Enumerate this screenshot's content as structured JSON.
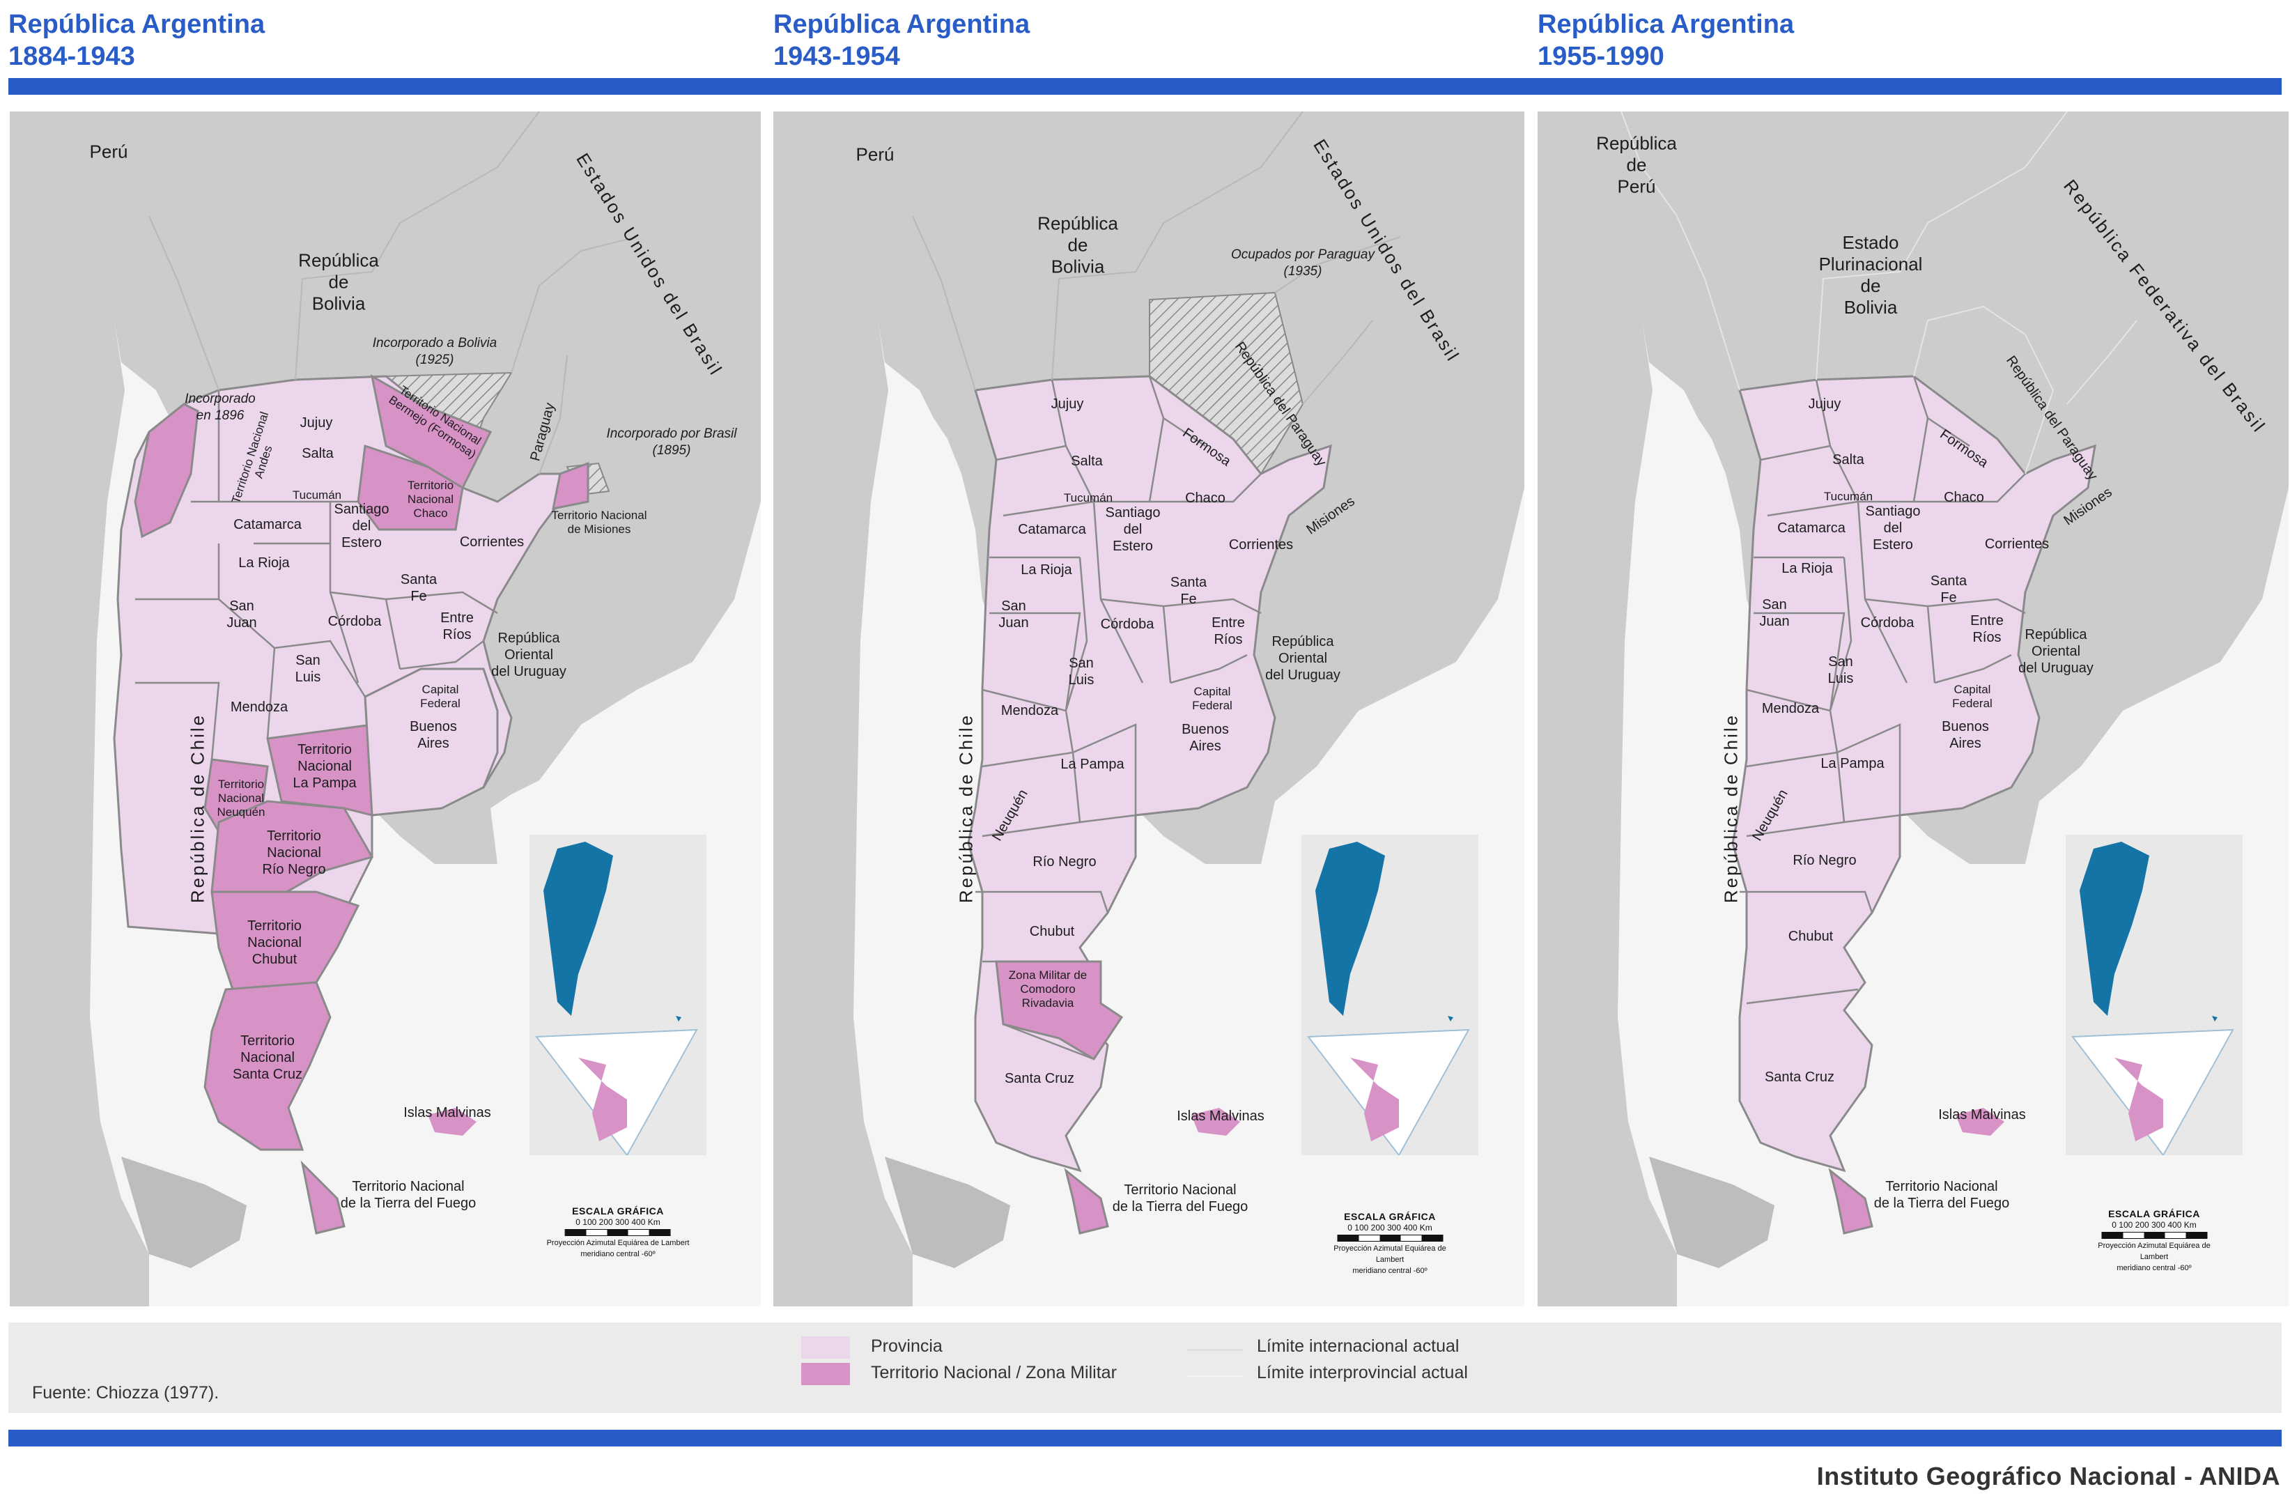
{
  "headers": [
    {
      "title": "República Argentina",
      "period": "1884-1943"
    },
    {
      "title": "República Argentina",
      "period": "1943-1954"
    },
    {
      "title": "República Argentina",
      "period": "1955-1990"
    }
  ],
  "colors": {
    "accent": "#2a5cc7",
    "provincia": "#ebd6ec",
    "territorio": "#d792c6",
    "foreign": "#cccccc",
    "land_border": "#8a8a8a"
  },
  "maps": [
    {
      "neighbors": {
        "peru": "Perú",
        "bolivia": "República\nde\nBolivia",
        "brasil": "Estados Unidos del Brasil",
        "chile": "República de Chile",
        "paraguay": "Paraguay",
        "uruguay": "República\nOriental\ndel Uruguay"
      },
      "annotations": {
        "a1": "Incorporado a Bolivia\n(1925)",
        "a2": "Incorporado\nen 1896",
        "a3": "Incorporado por Brasil\n(1895)"
      },
      "units": {
        "jujuy": "Jujuy",
        "salta": "Salta",
        "tucuman": "Tucumán",
        "santiago": "Santiago\ndel\nEstero",
        "catamarca": "Catamarca",
        "larioja": "La Rioja",
        "sanjuan": "San\nJuan",
        "sanluis": "San\nLuis",
        "cordoba": "Córdoba",
        "santafe": "Santa\nFe",
        "entrerios": "Entre\nRíos",
        "corrientes": "Corrientes",
        "mendoza": "Mendoza",
        "capital": "Capital\nFederal",
        "bsas": "Buenos\nAires",
        "losandes": "Territorio Nacional\nAndes",
        "bermejo": "Territorio Nacional\nBermejo (Formosa)",
        "chaco": "Territorio\nNacional\nChaco",
        "misiones": "Territorio Nacional\nde Misiones",
        "lapampa": "Territorio\nNacional\nLa Pampa",
        "neuquen": "Territorio\nNacional\nNeuquén",
        "rionegro": "Territorio\nNacional\nRío Negro",
        "chubut": "Territorio\nNacional\nChubut",
        "santacruz": "Territorio\nNacional\nSanta Cruz",
        "malvinas": "Islas Malvinas",
        "tdf": "Territorio Nacional\nde la Tierra del Fuego"
      }
    },
    {
      "neighbors": {
        "peru": "Perú",
        "bolivia": "República\nde\nBolivia",
        "brasil": "Estados Unidos del Brasil",
        "chile": "República de Chile",
        "paraguay": "República del Paraguay",
        "uruguay": "República\nOriental\ndel Uruguay"
      },
      "annotations": {
        "a1": "Ocupados por Paraguay\n(1935)"
      },
      "units": {
        "jujuy": "Jujuy",
        "salta": "Salta",
        "formosa": "Formosa",
        "chaco": "Chaco",
        "misiones": "Misiones",
        "tucuman": "Tucumán",
        "santiago": "Santiago\ndel\nEstero",
        "catamarca": "Catamarca",
        "larioja": "La Rioja",
        "corrientes": "Corrientes",
        "sanjuan": "San\nJuan",
        "cordoba": "Córdoba",
        "santafe": "Santa\nFe",
        "entrerios": "Entre\nRíos",
        "sanluis": "San\nLuis",
        "mendoza": "Mendoza",
        "capital": "Capital\nFederal",
        "bsas": "Buenos\nAires",
        "lapampa": "La Pampa",
        "neuquen": "Neuquén",
        "rionegro": "Río Negro",
        "chubut": "Chubut",
        "comodoro": "Zona Militar de\nComodoro\nRivadavia",
        "santacruz": "Santa Cruz",
        "malvinas": "Islas Malvinas",
        "tdf": "Territorio Nacional\nde la Tierra del Fuego"
      }
    },
    {
      "neighbors": {
        "peru": "República\nde\nPerú",
        "bolivia": "Estado\nPlurinacional\nde\nBolivia",
        "brasil": "República Federativa del Brasil",
        "chile": "República de Chile",
        "paraguay": "República del Paraguay",
        "uruguay": "República\nOriental\ndel Uruguay"
      },
      "annotations": {},
      "units": {
        "jujuy": "Jujuy",
        "salta": "Salta",
        "formosa": "Formosa",
        "chaco": "Chaco",
        "misiones": "Misiones",
        "tucuman": "Tucumán",
        "santiago": "Santiago\ndel\nEstero",
        "catamarca": "Catamarca",
        "larioja": "La Rioja",
        "corrientes": "Corrientes",
        "sanjuan": "San\nJuan",
        "cordoba": "Córdoba",
        "santafe": "Santa\nFe",
        "entrerios": "Entre\nRíos",
        "sanluis": "San\nLuis",
        "mendoza": "Mendoza",
        "capital": "Capital\nFederal",
        "bsas": "Buenos\nAires",
        "lapampa": "La Pampa",
        "neuquen": "Neuquén",
        "rionegro": "Río Negro",
        "chubut": "Chubut",
        "santacruz": "Santa Cruz",
        "malvinas": "Islas Malvinas",
        "tdf": "Territorio Nacional\nde la Tierra del Fuego"
      }
    }
  ],
  "scale": {
    "title": "ESCALA GRÁFICA",
    "ticks": "0   100  200  300  400  Km",
    "projection": "Proyección Azimutal Equiárea de Lambert",
    "meridian": "meridiano central -60º"
  },
  "legend": {
    "provincia": "Provincia",
    "territorio": "Territorio Nacional / Zona Militar",
    "limite_int": "Límite internacional actual",
    "limite_prov": "Límite interprovincial actual"
  },
  "source": "Fuente: Chiozza (1977).",
  "footer": "Instituto Geográfico Nacional - ANIDA"
}
